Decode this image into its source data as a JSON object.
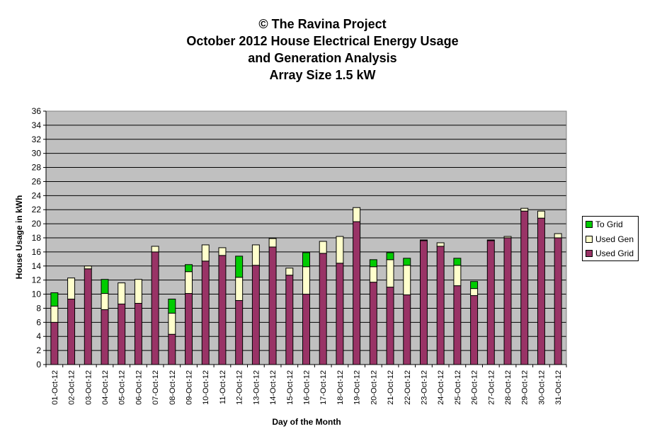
{
  "chart_data": {
    "type": "bar",
    "stacked": true,
    "title": [
      "© The Ravina Project",
      "October 2012 House Electrical Energy Usage",
      "and Generation Analysis",
      "Array Size 1.5 kW"
    ],
    "xlabel": "Day of the Month",
    "ylabel": "House Usage in kWh",
    "ylim": [
      0,
      36
    ],
    "yticks": [
      0,
      2,
      4,
      6,
      8,
      10,
      12,
      14,
      16,
      18,
      20,
      22,
      24,
      26,
      28,
      30,
      32,
      34,
      36
    ],
    "grid": true,
    "legend_position": "right",
    "categories": [
      "01-Oct-12",
      "02-Oct-12",
      "03-Oct-12",
      "04-Oct-12",
      "05-Oct-12",
      "06-Oct-12",
      "07-Oct-12",
      "08-Oct-12",
      "09-Oct-12",
      "10-Oct-12",
      "11-Oct-12",
      "12-Oct-12",
      "13-Oct-12",
      "14-Oct-12",
      "15-Oct-12",
      "16-Oct-12",
      "17-Oct-12",
      "18-Oct-12",
      "19-Oct-12",
      "20-Oct-12",
      "21-Oct-12",
      "22-Oct-12",
      "23-Oct-12",
      "24-Oct-12",
      "25-Oct-12",
      "26-Oct-12",
      "27-Oct-12",
      "28-Oct-12",
      "29-Oct-12",
      "30-Oct-12",
      "31-Oct-12"
    ],
    "series": [
      {
        "name": "Used Grid",
        "color": "#993366",
        "values": [
          6.0,
          9.3,
          13.6,
          7.8,
          8.6,
          8.7,
          16.0,
          4.3,
          10.1,
          14.7,
          15.5,
          9.1,
          14.1,
          16.7,
          12.7,
          10.0,
          15.8,
          14.4,
          20.3,
          11.7,
          11.0,
          9.9,
          17.6,
          16.8,
          11.2,
          9.8,
          17.6,
          18.0,
          21.8,
          20.8,
          18.0
        ]
      },
      {
        "name": "Used Gen",
        "color": "#FFFFCC",
        "values": [
          2.3,
          3.0,
          0.4,
          2.3,
          3.0,
          3.4,
          0.8,
          3.0,
          3.1,
          2.3,
          1.1,
          3.3,
          2.9,
          1.2,
          1.0,
          3.9,
          1.7,
          3.8,
          2.0,
          2.2,
          3.9,
          4.2,
          0.1,
          0.5,
          2.9,
          1.0,
          0.1,
          0.2,
          0.4,
          1.0,
          0.6
        ]
      },
      {
        "name": "To Grid",
        "color": "#00CC00",
        "values": [
          1.9,
          0,
          0,
          2.0,
          0,
          0,
          0,
          2.0,
          1.0,
          0,
          0,
          3.0,
          0,
          0,
          0,
          2.0,
          0,
          0,
          0,
          1.0,
          1.0,
          1.0,
          0,
          0,
          1.0,
          1.0,
          0,
          0,
          0,
          0,
          0
        ]
      }
    ]
  },
  "legend": [
    {
      "label": "To Grid",
      "color": "#00CC00"
    },
    {
      "label": "Used Gen",
      "color": "#FFFFCC"
    },
    {
      "label": "Used Grid",
      "color": "#993366"
    }
  ]
}
